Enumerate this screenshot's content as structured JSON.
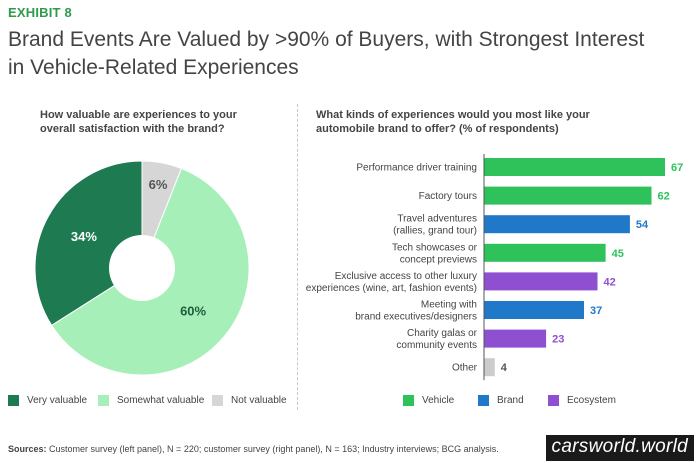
{
  "exhibit": "EXHIBIT 8",
  "title_line1": "Brand Events Are Valued by >90% of Buyers, with Strongest Interest",
  "title_line2": "in Vehicle-Related Experiences",
  "colors": {
    "very_valuable": "#1e7a50",
    "somewhat_valuable": "#a6efb8",
    "not_valuable": "#d6d6d6",
    "vehicle": "#2fc25b",
    "brand": "#1f78c8",
    "ecosystem": "#8f4fd1",
    "other": "#cccccc"
  },
  "chart_data": [
    {
      "type": "pie",
      "title_line1": "How valuable are experiences to your",
      "title_line2": "overall satisfaction with the brand?",
      "slices": [
        {
          "name": "Not valuable",
          "value": 6,
          "label": "6%"
        },
        {
          "name": "Somewhat valuable",
          "value": 60,
          "label": "60%"
        },
        {
          "name": "Very valuable",
          "value": 34,
          "label": "34%"
        }
      ],
      "legend": [
        "Very valuable",
        "Somewhat valuable",
        "Not valuable"
      ]
    },
    {
      "type": "bar",
      "orientation": "horizontal",
      "title_line1": "What kinds of experiences would you most like your",
      "title_line2": "automobile brand to offer? (% of respondents)",
      "xlim": [
        0,
        67
      ],
      "bars": [
        {
          "label": [
            "Performance driver training"
          ],
          "value": 67,
          "category": "vehicle"
        },
        {
          "label": [
            "Factory tours"
          ],
          "value": 62,
          "category": "vehicle"
        },
        {
          "label": [
            "Travel adventures",
            "(rallies, grand tour)"
          ],
          "value": 54,
          "category": "brand"
        },
        {
          "label": [
            "Tech showcases or",
            "concept previews"
          ],
          "value": 45,
          "category": "vehicle"
        },
        {
          "label": [
            "Exclusive access to other luxury",
            "experiences (wine, art, fashion events)"
          ],
          "value": 42,
          "category": "ecosystem"
        },
        {
          "label": [
            "Meeting with",
            "brand executives/designers"
          ],
          "value": 37,
          "category": "brand"
        },
        {
          "label": [
            "Charity galas or",
            "community events"
          ],
          "value": 23,
          "category": "ecosystem"
        },
        {
          "label": [
            "Other"
          ],
          "value": 4,
          "category": "other"
        }
      ],
      "legend": [
        {
          "name": "Vehicle",
          "category": "vehicle"
        },
        {
          "name": "Brand",
          "category": "brand"
        },
        {
          "name": "Ecosystem",
          "category": "ecosystem"
        }
      ]
    }
  ],
  "sources_label": "Sources:",
  "sources_text": " Customer survey (left panel), N = 220; customer survey (right panel), N = 163; Industry interviews; BCG analysis.",
  "watermark": "carsworld.world"
}
